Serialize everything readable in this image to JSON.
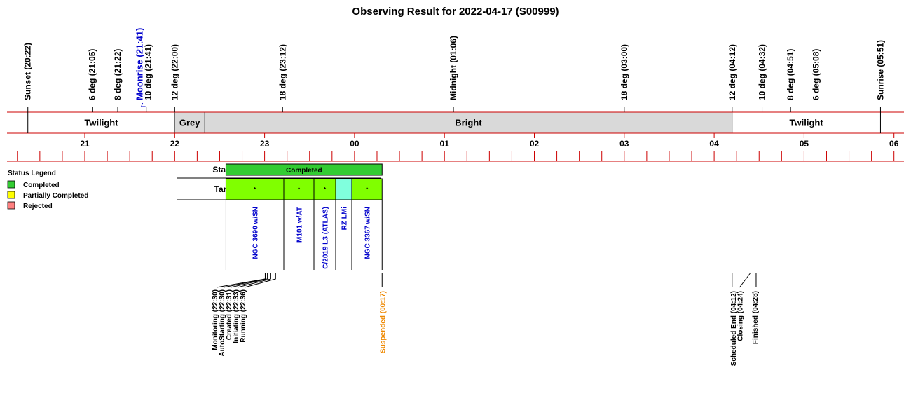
{
  "title": "Observing Result for 2022-04-17 (S00999)",
  "chart_data": {
    "type": "timeline",
    "title": "Observing Result for 2022-04-17 (S00999)",
    "time_axis": {
      "start": "20:00",
      "end": "06:10",
      "hour_labels": [
        "21",
        "22",
        "23",
        "00",
        "01",
        "02",
        "03",
        "04",
        "05",
        "06"
      ],
      "minor_tick_minutes": 15
    },
    "events": [
      {
        "label": "Sunset (20:22)",
        "time": "20:22",
        "color": "#000000"
      },
      {
        "label": "6 deg (21:05)",
        "time": "21:05",
        "color": "#000000"
      },
      {
        "label": "8 deg (21:22)",
        "time": "21:22",
        "color": "#000000"
      },
      {
        "label": "Moonrise (21:41)",
        "time": "21:41",
        "color": "#0000cc"
      },
      {
        "label": "10 deg (21:41)",
        "time": "21:41",
        "color": "#000000"
      },
      {
        "label": "12 deg (22:00)",
        "time": "22:00",
        "color": "#000000"
      },
      {
        "label": "18 deg (23:12)",
        "time": "23:12",
        "color": "#000000"
      },
      {
        "label": "Midnight (01:06)",
        "time": "01:06",
        "color": "#000000"
      },
      {
        "label": "18 deg (03:00)",
        "time": "03:00",
        "color": "#000000"
      },
      {
        "label": "12 deg (04:12)",
        "time": "04:12",
        "color": "#000000"
      },
      {
        "label": "10 deg (04:32)",
        "time": "04:32",
        "color": "#000000"
      },
      {
        "label": "8 deg (04:51)",
        "time": "04:51",
        "color": "#000000"
      },
      {
        "label": "6 deg (05:08)",
        "time": "05:08",
        "color": "#000000"
      },
      {
        "label": "Sunrise (05:51)",
        "time": "05:51",
        "color": "#000000"
      }
    ],
    "sky_bands": [
      {
        "label": "Twilight",
        "start": "20:22",
        "end": "22:00",
        "color": "#ffffff"
      },
      {
        "label": "Grey",
        "start": "22:00",
        "end": "22:20",
        "color": "#d9d9d9"
      },
      {
        "label": "Bright",
        "start": "22:20",
        "end": "04:12",
        "color": "#d9d9d9"
      },
      {
        "label": "Twilight",
        "start": "04:12",
        "end": "05:51",
        "color": "#ffffff"
      }
    ],
    "status_label": "Status",
    "targets_label": "Targets",
    "status_bar": {
      "label": "Completed",
      "start": "22:30",
      "end": "00:17",
      "color": "#33cc33"
    },
    "targets": [
      {
        "name": "NGC 3690 w/SN",
        "start": "22:30",
        "end": "23:15",
        "color": "#80ff00",
        "mark": "*"
      },
      {
        "name": "M101 w/AT",
        "start": "23:15",
        "end": "23:55",
        "color": "#80ff00",
        "mark": "*"
      },
      {
        "name": "C/2019 L3 (ATLAS)",
        "start": "23:55",
        "end": "00:10",
        "color": "#80ff00",
        "mark": "*"
      },
      {
        "name": "RZ LMi",
        "start": "00:10",
        "end": "00:17",
        "color": "#80ffdd",
        "mark": ""
      },
      {
        "name": "NGC 3367 w/SN",
        "start": "00:17",
        "end": "00:17",
        "color": "#80ff00",
        "mark": "*"
      }
    ],
    "lower_events": [
      {
        "label": "Monitoring (22:30)",
        "time": "22:30",
        "color": "#000000"
      },
      {
        "label": "AutoStarting (22:30)",
        "time": "22:30",
        "color": "#000000"
      },
      {
        "label": "Created (22:31)",
        "time": "22:31",
        "color": "#000000"
      },
      {
        "label": "Initiating (22:33)",
        "time": "22:33",
        "color": "#000000"
      },
      {
        "label": "Running (22:36)",
        "time": "22:36",
        "color": "#000000"
      },
      {
        "label": "Suspended (00:17)",
        "time": "00:17",
        "color": "#ee8800"
      },
      {
        "label": "Scheduled End (04:12)",
        "time": "04:12",
        "color": "#000000"
      },
      {
        "label": "Closing (04:24)",
        "time": "04:24",
        "color": "#000000"
      },
      {
        "label": "Finished (04:28)",
        "time": "04:28",
        "color": "#000000"
      }
    ],
    "legend": {
      "title": "Status Legend",
      "items": [
        {
          "label": "Completed",
          "color": "#33cc33"
        },
        {
          "label": "Partially Completed",
          "color": "#ffff00"
        },
        {
          "label": "Rejected",
          "color": "#ff8080"
        }
      ]
    }
  }
}
